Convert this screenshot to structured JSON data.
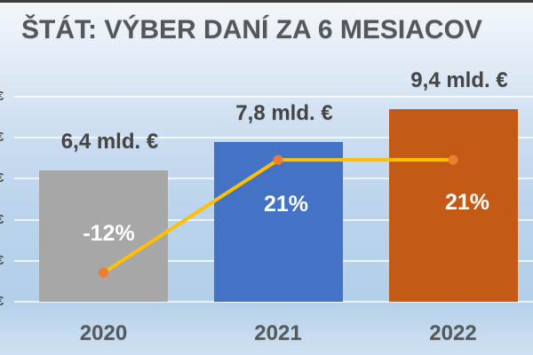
{
  "title": "ŠTÁT: VÝBER DANÍ ZA 6 MESIACOV",
  "colors": {
    "top_border": "#3c3c3c",
    "background_top": "#f4f6f8",
    "background_bottom": "#cfe2f2",
    "title_text": "#55585a",
    "axis_text": "#56595c",
    "y_tick_text": "#4d4d4d",
    "value_label_text": "#454545",
    "pct_label_text": "#ffffff",
    "gridline": "rgba(255,255,255,0.75)",
    "bar_2020": "#A7A7A7",
    "bar_2021": "#4472C4",
    "bar_2022": "#C35A15",
    "line": "#FFC000",
    "marker": "#ED7D31"
  },
  "chart_data": {
    "type": "bar",
    "combo": "bar+line",
    "title": "ŠTÁT: VÝBER DANÍ ZA 6 MESIACOV",
    "categories": [
      "2020",
      "2021",
      "2022"
    ],
    "series": [
      {
        "type": "bar",
        "unit": "mld. €",
        "values": [
          6.4,
          7.8,
          9.4
        ],
        "data_labels": [
          "6,4 mld. €",
          "7,8 mld. €",
          "9,4 mld. €"
        ],
        "bar_colors": [
          "#A7A7A7",
          "#4472C4",
          "#C35A15"
        ]
      },
      {
        "type": "line",
        "unit": "%",
        "values": [
          -12,
          21,
          21
        ],
        "data_labels": [
          "-12%",
          "21%",
          "21%"
        ],
        "line_color": "#FFC000",
        "marker_color": "#ED7D31"
      }
    ],
    "xlabel": "",
    "ylabel": "",
    "ylim": [
      0,
      10
    ],
    "gridline_values": [
      0,
      2,
      4,
      6,
      8,
      10
    ],
    "y_tick_labels_visible": [
      "€",
      "€",
      "€",
      "€",
      "€",
      "€"
    ],
    "legend": "none",
    "grid": true
  }
}
